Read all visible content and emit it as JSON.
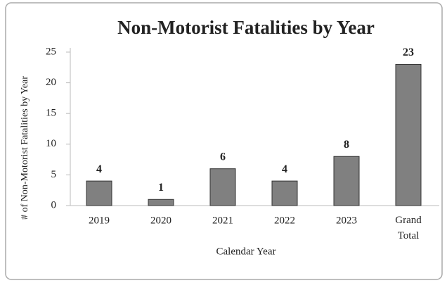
{
  "chart_data": {
    "type": "bar",
    "title": "Non-Motorist Fatalities by Year",
    "x_label": "Calendar Year",
    "y_label": "# of Non-Motorist Fatalities by Year",
    "categories": [
      "2019",
      "2020",
      "2021",
      "2022",
      "2023",
      "Grand Total"
    ],
    "values": [
      4,
      1,
      6,
      4,
      8,
      23
    ],
    "color": "#808080",
    "ylim": [
      0,
      25
    ],
    "yticks": [
      0,
      5,
      10,
      15,
      20,
      25
    ],
    "grid": false,
    "data_labels": true
  }
}
